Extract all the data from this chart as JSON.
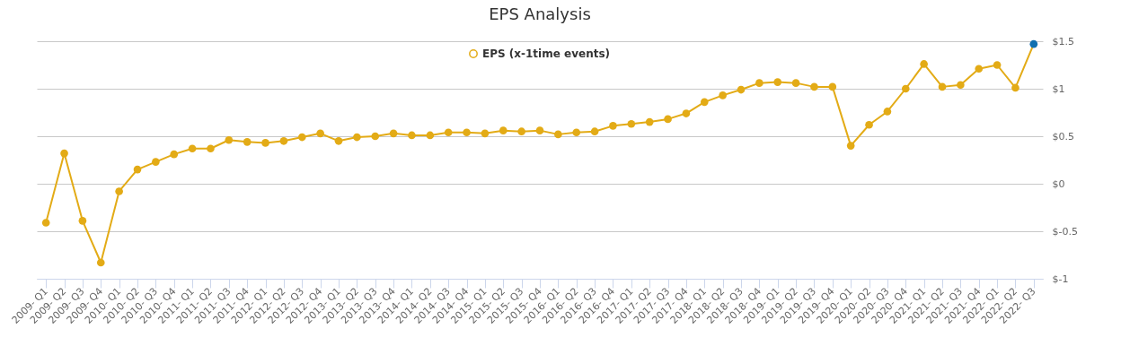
{
  "chart_data": {
    "type": "line",
    "title": "EPS Analysis",
    "categories": [
      "2009- Q1",
      "2009- Q2",
      "2009- Q3",
      "2009- Q4",
      "2010- Q1",
      "2010- Q2",
      "2010- Q3",
      "2010- Q4",
      "2011- Q1",
      "2011- Q2",
      "2011- Q3",
      "2011- Q4",
      "2012- Q1",
      "2012- Q2",
      "2012- Q3",
      "2012- Q4",
      "2013- Q1",
      "2013- Q2",
      "2013- Q3",
      "2013- Q4",
      "2014- Q1",
      "2014- Q2",
      "2014- Q3",
      "2014- Q4",
      "2015- Q1",
      "2015- Q2",
      "2015- Q3",
      "2015- Q4",
      "2016- Q1",
      "2016- Q2",
      "2016- Q3",
      "2016- Q4",
      "2017- Q1",
      "2017- Q2",
      "2017- Q3",
      "2017- Q4",
      "2018- Q1",
      "2018- Q2",
      "2018- Q3",
      "2018- Q4",
      "2019- Q1",
      "2019- Q2",
      "2019- Q3",
      "2019- Q4",
      "2020- Q1",
      "2020- Q2",
      "2020- Q3",
      "2020- Q4",
      "2021- Q1",
      "2021- Q2",
      "2021- Q3",
      "2021- Q4",
      "2022- Q1",
      "2022- Q2",
      "2022- Q3"
    ],
    "series": [
      {
        "name": "EPS (x-1time events)",
        "color": "#e3ab16",
        "colors": [
          "#e3ab16",
          "#e3ab16",
          "#e3ab16",
          "#e3ab16",
          "#e3ab16",
          "#e3ab16",
          "#e3ab16",
          "#e3ab16",
          "#e3ab16",
          "#e3ab16",
          "#e3ab16",
          "#e3ab16",
          "#e3ab16",
          "#e3ab16",
          "#e3ab16",
          "#e3ab16",
          "#e3ab16",
          "#e3ab16",
          "#e3ab16",
          "#e3ab16",
          "#e3ab16",
          "#e3ab16",
          "#e3ab16",
          "#e3ab16",
          "#e3ab16",
          "#e3ab16",
          "#e3ab16",
          "#e3ab16",
          "#e3ab16",
          "#e3ab16",
          "#e3ab16",
          "#e3ab16",
          "#e3ab16",
          "#e3ab16",
          "#e3ab16",
          "#e3ab16",
          "#e3ab16",
          "#e3ab16",
          "#e3ab16",
          "#e3ab16",
          "#e3ab16",
          "#e3ab16",
          "#e3ab16",
          "#e3ab16",
          "#e3ab16",
          "#e3ab16",
          "#e3ab16",
          "#e3ab16",
          "#e3ab16",
          "#e3ab16",
          "#e3ab16",
          "#e3ab16",
          "#e3ab16",
          "#e3ab16",
          "#1170b0"
        ],
        "values": [
          -0.41,
          0.32,
          -0.39,
          -0.83,
          -0.08,
          0.15,
          0.23,
          0.31,
          0.37,
          0.37,
          0.46,
          0.44,
          0.43,
          0.45,
          0.49,
          0.53,
          0.45,
          0.49,
          0.5,
          0.53,
          0.51,
          0.51,
          0.54,
          0.54,
          0.53,
          0.56,
          0.55,
          0.56,
          0.52,
          0.54,
          0.55,
          0.61,
          0.63,
          0.65,
          0.68,
          0.74,
          0.86,
          0.93,
          0.99,
          1.06,
          1.07,
          1.06,
          1.02,
          1.02,
          0.4,
          0.62,
          0.76,
          1.0,
          1.26,
          1.02,
          1.04,
          1.21,
          1.25,
          1.01,
          1.47
        ]
      }
    ],
    "ylim": [
      -1,
      1.5
    ],
    "yticks": [
      {
        "value": -1,
        "label": "$-1"
      },
      {
        "value": -0.5,
        "label": "$-0.5"
      },
      {
        "value": 0,
        "label": "$0"
      },
      {
        "value": 0.5,
        "label": "$0.5"
      },
      {
        "value": 1,
        "label": "$1"
      },
      {
        "value": 1.5,
        "label": "$1.5"
      }
    ],
    "grid": "y",
    "legend": "top",
    "marker": "circle",
    "line_style": "solid"
  }
}
